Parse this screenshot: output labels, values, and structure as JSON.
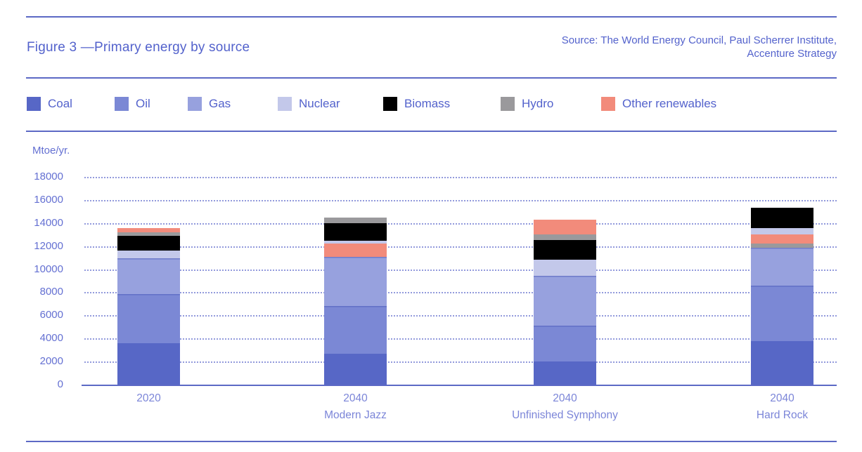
{
  "figure": {
    "title": "Figure 3 —Primary energy by source",
    "source_line1": "Source: The World Energy Council, Paul Scherrer Institute,",
    "source_line2": "Accenture Strategy"
  },
  "colors": {
    "coal": "#5767c6",
    "oil": "#7b88d5",
    "gas": "#97a1de",
    "nuclear": "#c3c8ea",
    "biomass": "#000000",
    "hydro": "#9a999c",
    "other_renewables": "#f28b7b",
    "accent_text": "#5362cc",
    "tick_text": "#6470d2",
    "x_label_text": "#7b85d8",
    "rule_line": "#5c69c5",
    "gridline": "#7f89d6"
  },
  "legend": [
    {
      "key": "coal",
      "label": "Coal"
    },
    {
      "key": "oil",
      "label": "Oil"
    },
    {
      "key": "gas",
      "label": "Gas"
    },
    {
      "key": "nuclear",
      "label": "Nuclear"
    },
    {
      "key": "biomass",
      "label": "Biomass"
    },
    {
      "key": "hydro",
      "label": "Hydro"
    },
    {
      "key": "other_renewables",
      "label": "Other renewables"
    }
  ],
  "chart_data": {
    "type": "bar",
    "stacked": true,
    "title": "Primary energy by source",
    "ylabel": "Mtoe/yr.",
    "xlabel": "",
    "yticks": [
      0,
      2000,
      4000,
      6000,
      8000,
      10000,
      12000,
      14000,
      16000,
      18000
    ],
    "ylim": [
      0,
      19200
    ],
    "grid": "dotted-horizontal",
    "legend_position": "top",
    "segment_order": "bottom-to-top as drawn; note order differs per bar in source image",
    "bars": [
      {
        "label_line1": "2020",
        "label_line2": "",
        "total": 13550,
        "segments": [
          {
            "key": "coal",
            "value": 3600
          },
          {
            "key": "oil",
            "value": 4250
          },
          {
            "key": "gas",
            "value": 3100
          },
          {
            "key": "nuclear",
            "value": 650
          },
          {
            "key": "biomass",
            "value": 1300
          },
          {
            "key": "hydro",
            "value": 300
          },
          {
            "key": "other_renewables",
            "value": 350
          }
        ]
      },
      {
        "label_line1": "2040",
        "label_line2": "Modern Jazz",
        "total": 14500,
        "segments": [
          {
            "key": "coal",
            "value": 2700
          },
          {
            "key": "oil",
            "value": 4100
          },
          {
            "key": "gas",
            "value": 4300
          },
          {
            "key": "other_renewables",
            "value": 1100
          },
          {
            "key": "nuclear",
            "value": 250
          },
          {
            "key": "biomass",
            "value": 1550
          },
          {
            "key": "hydro",
            "value": 500
          }
        ]
      },
      {
        "label_line1": "2040",
        "label_line2": "Unfinished Symphony",
        "total": 14300,
        "segments": [
          {
            "key": "coal",
            "value": 2000
          },
          {
            "key": "oil",
            "value": 3100
          },
          {
            "key": "gas",
            "value": 4350
          },
          {
            "key": "nuclear",
            "value": 1350
          },
          {
            "key": "biomass",
            "value": 1700
          },
          {
            "key": "hydro",
            "value": 500
          },
          {
            "key": "other_renewables",
            "value": 1300
          }
        ]
      },
      {
        "label_line1": "2040",
        "label_line2": "Hard Rock",
        "total": 15350,
        "segments": [
          {
            "key": "coal",
            "value": 3750
          },
          {
            "key": "oil",
            "value": 4850
          },
          {
            "key": "gas",
            "value": 3250
          },
          {
            "key": "hydro",
            "value": 350
          },
          {
            "key": "other_renewables",
            "value": 800
          },
          {
            "key": "nuclear",
            "value": 550
          },
          {
            "key": "biomass",
            "value": 1800
          }
        ]
      }
    ]
  }
}
